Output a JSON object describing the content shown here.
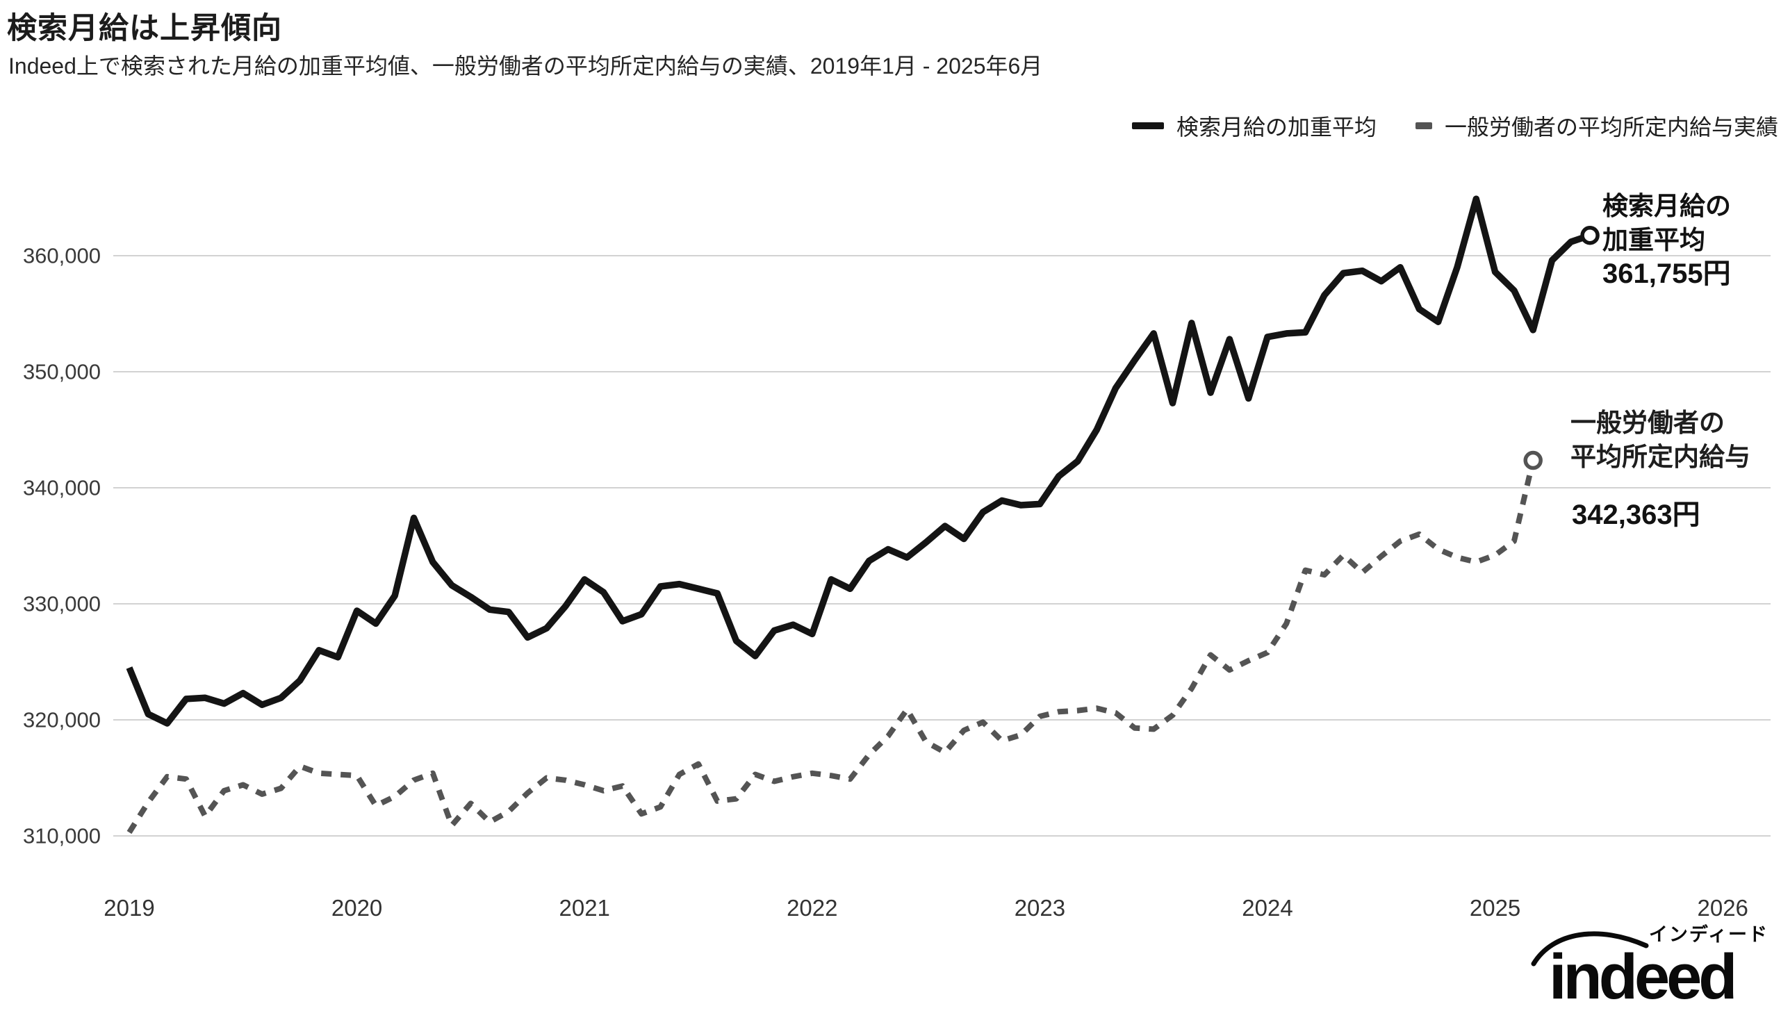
{
  "title": "検索月給は上昇傾向",
  "subtitle": "Indeed上で検索された月給の加重平均値、一般労働者の平均所定内給与の実績、2019年1月 - 2025年6月",
  "legend": [
    {
      "label": "検索月給の加重平均",
      "style": "solid"
    },
    {
      "label": "一般労働者の平均所定内給与実績",
      "style": "dashed"
    }
  ],
  "annotations": {
    "solid": {
      "lines": [
        "検索月給の",
        "加重平均"
      ],
      "value": "361,755円"
    },
    "dashed": {
      "lines": [
        "一般労働者の",
        "平均所定内給与"
      ],
      "value": "342,363円"
    }
  },
  "logo": {
    "wordmark": "indeed",
    "katakana": "インディード"
  },
  "colors": {
    "solid": "#141414",
    "dashed": "#545454",
    "grid": "#d2d2d2",
    "axis_text": "#3a3a3a",
    "background": "#ffffff"
  },
  "chart_data": {
    "type": "line",
    "title": "検索月給は上昇傾向",
    "subtitle": "Indeed上で検索された月給の加重平均値、一般労働者の平均所定内給与の実績、2019年1月 - 2025年6月",
    "xlabel": "",
    "ylabel": "",
    "x_start": "2019-01",
    "x_interval": "month",
    "x_tick_years": [
      2019,
      2020,
      2021,
      2022,
      2023,
      2024,
      2025,
      2026
    ],
    "ylim": [
      310000,
      360000
    ],
    "y_ticks": [
      310000,
      320000,
      330000,
      340000,
      350000,
      360000
    ],
    "y_tick_labels": [
      "310,000",
      "320,000",
      "330,000",
      "340,000",
      "350,000",
      "360,000"
    ],
    "grid": "horizontal",
    "legend_position": "top-right",
    "series": [
      {
        "name": "検索月給の加重平均",
        "style": "solid",
        "color": "#141414",
        "end_marker": "open-circle",
        "end_value": 361755,
        "values": [
          324500,
          320500,
          319700,
          321800,
          321900,
          321400,
          322300,
          321300,
          321900,
          323400,
          326000,
          325400,
          329400,
          328300,
          330700,
          337400,
          333600,
          331600,
          330600,
          329500,
          329300,
          327100,
          327900,
          329800,
          332100,
          331000,
          328500,
          329100,
          331500,
          331700,
          331300,
          330900,
          326800,
          325500,
          327700,
          328200,
          327400,
          332100,
          331300,
          333700,
          334700,
          334000,
          335300,
          336700,
          335600,
          337900,
          338900,
          338500,
          338600,
          341000,
          342300,
          345000,
          348600,
          351000,
          353300,
          347300,
          354200,
          348200,
          352800,
          347700,
          353000,
          353300,
          353400,
          356600,
          358500,
          358700,
          357800,
          359000,
          355400,
          354300,
          359000,
          364900,
          358600,
          357000,
          353600,
          359600,
          361200,
          361755
        ]
      },
      {
        "name": "一般労働者の平均所定内給与実績",
        "style": "dashed",
        "color": "#545454",
        "end_marker": "open-circle",
        "end_value": 342363,
        "values": [
          310300,
          312900,
          315100,
          314900,
          311700,
          313900,
          314400,
          313600,
          314100,
          316000,
          315400,
          315300,
          315200,
          312600,
          313400,
          314800,
          315400,
          310900,
          312800,
          311200,
          312100,
          313700,
          315000,
          314800,
          314400,
          313900,
          314300,
          311900,
          312500,
          315300,
          316200,
          313000,
          313200,
          315300,
          314700,
          315100,
          315400,
          315200,
          314900,
          317000,
          318600,
          320900,
          318100,
          317200,
          319100,
          319800,
          318200,
          318700,
          320300,
          320700,
          320800,
          321000,
          320600,
          319300,
          319200,
          320400,
          322700,
          325600,
          324300,
          325100,
          325800,
          328300,
          332900,
          332500,
          334200,
          332700,
          334100,
          335400,
          336000,
          334700,
          334000,
          333600,
          334200,
          335400,
          342363
        ]
      }
    ]
  }
}
